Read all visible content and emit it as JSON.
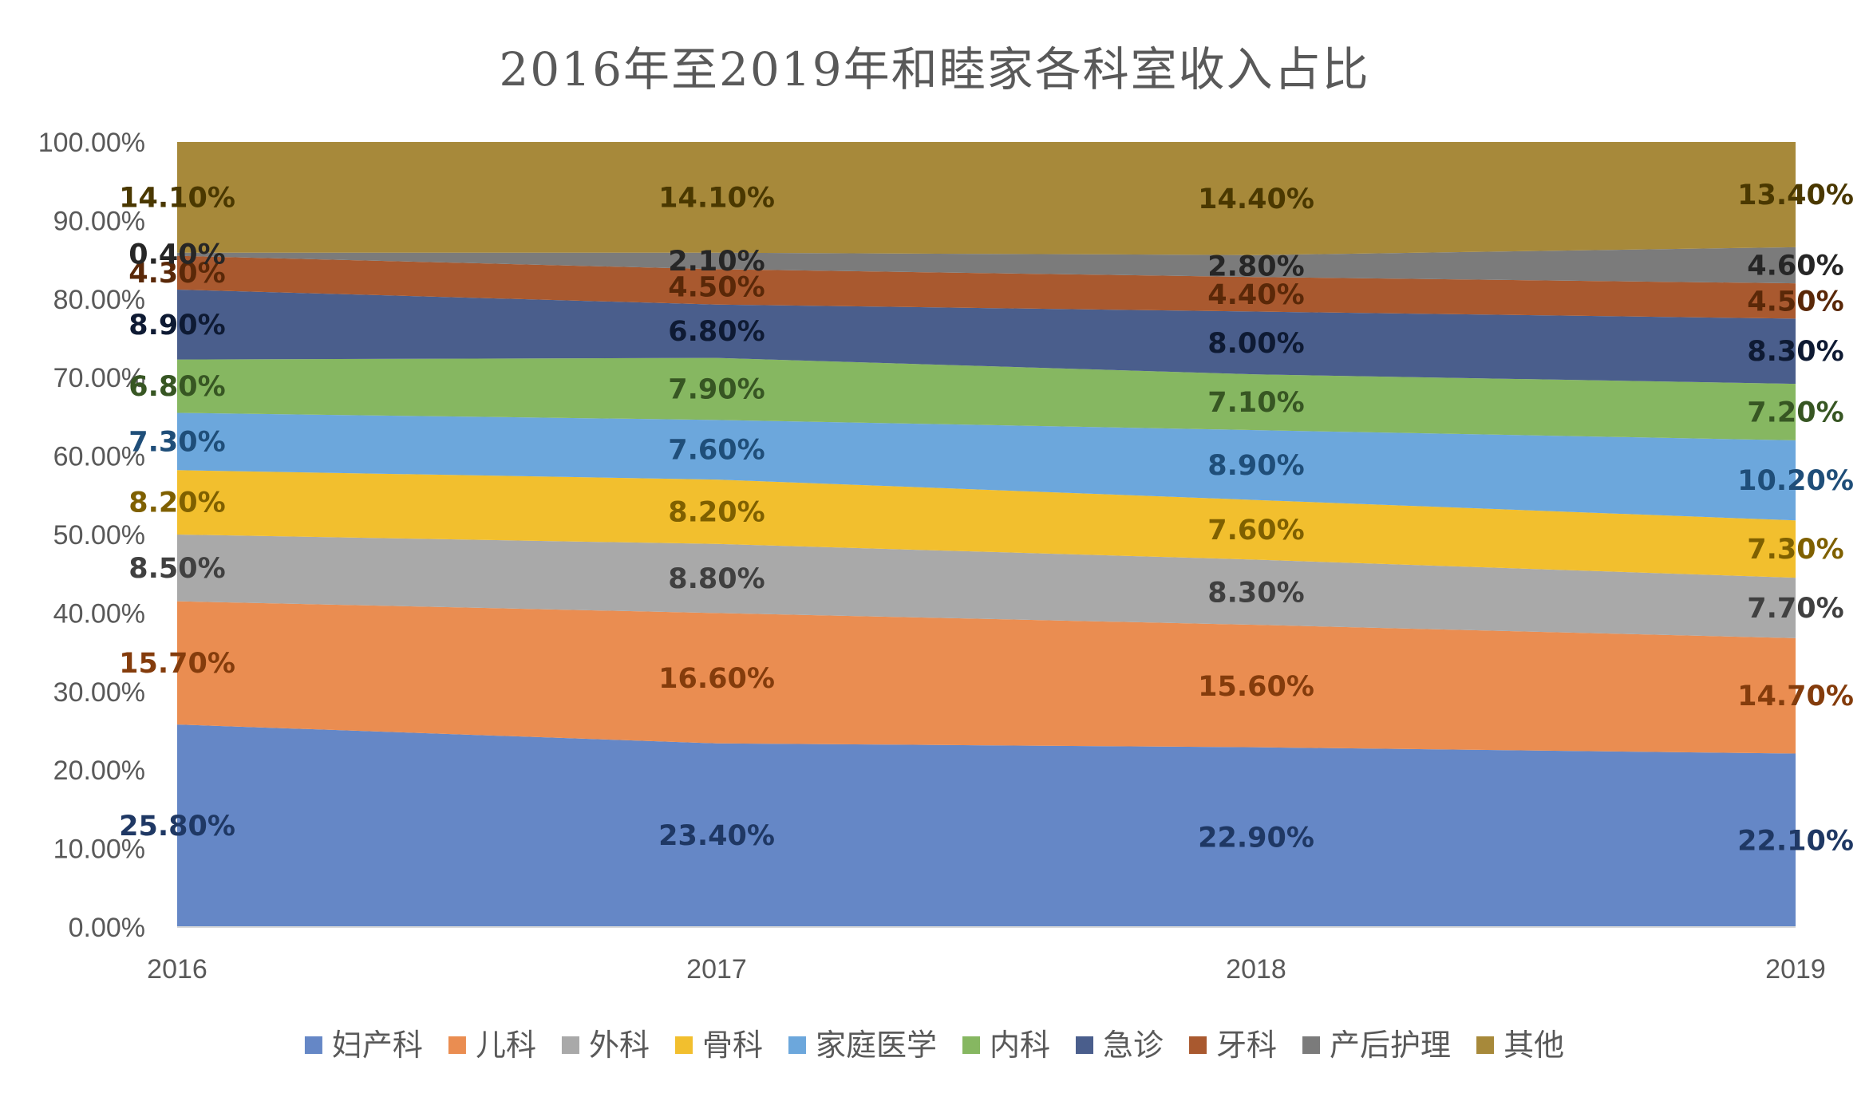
{
  "chart_data": {
    "type": "area",
    "stacked": true,
    "title": "2016年至2019年和睦家各科室收入占比",
    "categories": [
      "2016",
      "2017",
      "2018",
      "2019"
    ],
    "ylim": [
      0,
      100
    ],
    "yticks": [
      "0.00%",
      "10.00%",
      "20.00%",
      "30.00%",
      "40.00%",
      "50.00%",
      "60.00%",
      "70.00%",
      "80.00%",
      "90.00%",
      "100.00%"
    ],
    "legend_position": "bottom",
    "series": [
      {
        "name": "妇产科",
        "color": "#6587C6",
        "label_color": "#1F3864",
        "values": [
          25.8,
          23.4,
          22.9,
          22.1
        ],
        "labels": [
          "25.80%",
          "23.40%",
          "22.90%",
          "22.10%"
        ]
      },
      {
        "name": "儿科",
        "color": "#EA8D51",
        "label_color": "#843C0C",
        "values": [
          15.7,
          16.6,
          15.6,
          14.7
        ],
        "labels": [
          "15.70%",
          "16.60%",
          "15.60%",
          "14.70%"
        ]
      },
      {
        "name": "外科",
        "color": "#A9A9A9",
        "label_color": "#404040",
        "values": [
          8.5,
          8.8,
          8.3,
          7.7
        ],
        "labels": [
          "8.50%",
          "8.80%",
          "8.30%",
          "7.70%"
        ]
      },
      {
        "name": "骨科",
        "color": "#F2BF2E",
        "label_color": "#7F6000",
        "values": [
          8.2,
          8.2,
          7.6,
          7.3
        ],
        "labels": [
          "8.20%",
          "8.20%",
          "7.60%",
          "7.30%"
        ]
      },
      {
        "name": "家庭医学",
        "color": "#6CA7DC",
        "label_color": "#1F4E79",
        "values": [
          7.3,
          7.6,
          8.9,
          10.2
        ],
        "labels": [
          "7.30%",
          "7.60%",
          "8.90%",
          "10.20%"
        ]
      },
      {
        "name": "内科",
        "color": "#86B761",
        "label_color": "#375623",
        "values": [
          6.8,
          7.9,
          7.1,
          7.2
        ],
        "labels": [
          "6.80%",
          "7.90%",
          "7.10%",
          "7.20%"
        ]
      },
      {
        "name": "急诊",
        "color": "#4A5E8C",
        "label_color": "#0E1A33",
        "values": [
          8.9,
          6.8,
          8.0,
          8.3
        ],
        "labels": [
          "8.90%",
          "6.80%",
          "8.00%",
          "8.30%"
        ]
      },
      {
        "name": "牙科",
        "color": "#A9592F",
        "label_color": "#5A2808",
        "values": [
          4.3,
          4.5,
          4.4,
          4.5
        ],
        "labels": [
          "4.30%",
          "4.50%",
          "4.40%",
          "4.50%"
        ]
      },
      {
        "name": "产后护理",
        "color": "#7B7B7B",
        "label_color": "#262626",
        "values": [
          0.4,
          2.1,
          2.8,
          4.6
        ],
        "labels": [
          "0.40%",
          "2.10%",
          "2.80%",
          "4.60%"
        ]
      },
      {
        "name": "其他",
        "color": "#A7893A",
        "label_color": "#4A3800",
        "values": [
          14.1,
          14.1,
          14.4,
          13.4
        ],
        "labels": [
          "14.10%",
          "14.10%",
          "14.40%",
          "13.40%"
        ]
      }
    ]
  }
}
